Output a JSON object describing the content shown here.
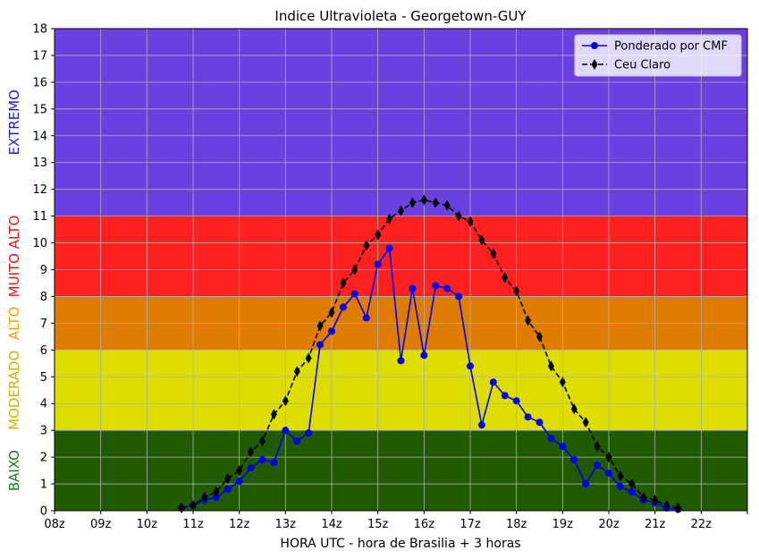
{
  "chart_data": {
    "type": "line",
    "title": "Indice Ultravioleta - Georgetown-GUY",
    "xlabel": "HORA UTC - hora de Brasilia + 3 horas",
    "ylabel": "",
    "xlim": [
      8,
      23
    ],
    "ylim": [
      0,
      18
    ],
    "x_tick_values": [
      8,
      9,
      10,
      11,
      12,
      13,
      14,
      15,
      16,
      17,
      18,
      19,
      20,
      21,
      22,
      23
    ],
    "x_tick_labels": [
      "08z",
      "09z",
      "10z",
      "11z",
      "12z",
      "13z",
      "14z",
      "15z",
      "16z",
      "17z",
      "18z",
      "19z",
      "20z",
      "21z",
      "22z",
      ""
    ],
    "y_ticks": [
      0,
      1,
      2,
      3,
      4,
      5,
      6,
      7,
      8,
      9,
      10,
      11,
      12,
      13,
      14,
      15,
      16,
      17,
      18
    ],
    "grid": true,
    "legend_position": "top-right",
    "bands": [
      {
        "label": "BAIXO",
        "from": 0,
        "to": 3,
        "color": "#215b01",
        "label_color": "#1a7a1a"
      },
      {
        "label": "MODERADO",
        "from": 3,
        "to": 6,
        "color": "#dddd00",
        "label_color": "#c8b400"
      },
      {
        "label": "ALTO",
        "from": 6,
        "to": 8,
        "color": "#df7c00",
        "label_color": "#f0a000"
      },
      {
        "label": "MUITO ALTO",
        "from": 8,
        "to": 11,
        "color": "#ff2020",
        "label_color": "#ee1111"
      },
      {
        "label": "EXTREMO",
        "from": 11,
        "to": 18,
        "color": "#6a41e0",
        "label_color": "#1a1ae0"
      }
    ],
    "series": [
      {
        "name": "Ponderado por CMF",
        "color": "#0000ee",
        "line_style": "solid",
        "marker": "circle",
        "x": [
          10.75,
          11.0,
          11.25,
          11.5,
          11.75,
          12.0,
          12.25,
          12.5,
          12.75,
          13.0,
          13.25,
          13.5,
          13.75,
          14.0,
          14.25,
          14.5,
          14.75,
          15.0,
          15.25,
          15.5,
          15.75,
          16.0,
          16.25,
          16.5,
          16.75,
          17.0,
          17.25,
          17.5,
          17.75,
          18.0,
          18.25,
          18.5,
          18.75,
          19.0,
          19.25,
          19.5,
          19.75,
          20.0,
          20.25,
          20.5,
          20.75,
          21.0,
          21.25,
          21.5
        ],
        "y": [
          0.1,
          0.2,
          0.4,
          0.5,
          0.8,
          1.1,
          1.6,
          1.9,
          1.8,
          3.0,
          2.6,
          2.9,
          6.2,
          6.7,
          7.6,
          8.1,
          7.2,
          9.2,
          9.8,
          5.6,
          8.3,
          5.8,
          8.4,
          8.3,
          8.0,
          5.4,
          3.2,
          4.8,
          4.3,
          4.1,
          3.5,
          3.3,
          2.7,
          2.4,
          1.9,
          1.0,
          1.7,
          1.4,
          0.9,
          0.7,
          0.4,
          0.3,
          0.1,
          0.05
        ]
      },
      {
        "name": "Ceu Claro",
        "color": "#000000",
        "line_style": "dashed",
        "marker": "thin_diamond",
        "x": [
          10.75,
          11.0,
          11.25,
          11.5,
          11.75,
          12.0,
          12.25,
          12.5,
          12.75,
          13.0,
          13.25,
          13.5,
          13.75,
          14.0,
          14.25,
          14.5,
          14.75,
          15.0,
          15.25,
          15.5,
          15.75,
          16.0,
          16.25,
          16.5,
          16.75,
          17.0,
          17.25,
          17.5,
          17.75,
          18.0,
          18.25,
          18.5,
          18.75,
          19.0,
          19.25,
          19.5,
          19.75,
          20.0,
          20.25,
          20.5,
          20.75,
          21.0,
          21.25,
          21.5
        ],
        "y": [
          0.1,
          0.2,
          0.5,
          0.7,
          1.2,
          1.5,
          2.2,
          2.6,
          3.6,
          4.1,
          5.2,
          5.7,
          6.9,
          7.4,
          8.5,
          9.0,
          9.9,
          10.3,
          10.9,
          11.2,
          11.5,
          11.6,
          11.5,
          11.4,
          11.0,
          10.8,
          10.1,
          9.6,
          8.7,
          8.2,
          7.1,
          6.5,
          5.4,
          4.8,
          3.8,
          3.3,
          2.4,
          2.0,
          1.3,
          1.0,
          0.5,
          0.4,
          0.2,
          0.1
        ]
      }
    ]
  }
}
